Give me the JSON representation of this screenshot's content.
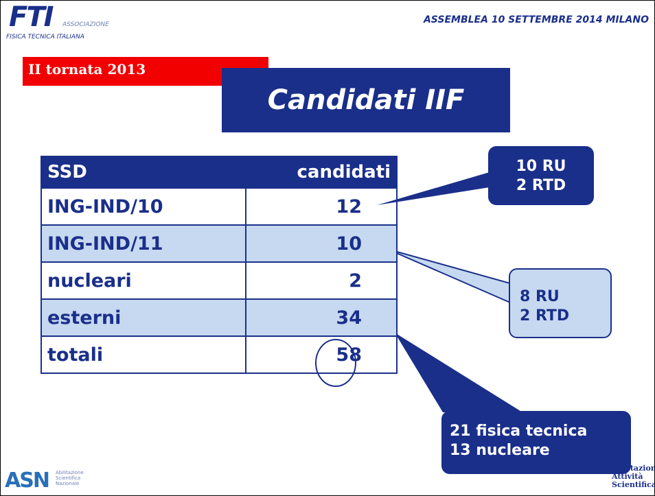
{
  "header": {
    "logo": {
      "mark": "FTI",
      "line1": "ASSOCIAZIONE",
      "line2": "FISICA TECNICA ITALIANA"
    },
    "event": "ASSEMBLEA  10 SETTEMBRE  2014 MILANO"
  },
  "tag": "II tornata 2013",
  "title": "Candidati  IIF",
  "table": {
    "columns": [
      "SSD",
      "candidati"
    ],
    "rows": [
      [
        "ING-IND/10",
        "12"
      ],
      [
        "ING-IND/11",
        "10"
      ],
      [
        "nucleari",
        "2"
      ],
      [
        "esterni",
        "34"
      ],
      [
        "totali",
        "58"
      ]
    ]
  },
  "callouts": [
    [
      "10 RU",
      "2 RTD"
    ],
    [
      "8 RU",
      "2 RTD"
    ],
    [
      "21 fisica tecnica",
      "13 nucleare"
    ]
  ],
  "footer": {
    "left": {
      "mark": "ASN",
      "lines": [
        "Abilitazione",
        "Scientifica",
        "Nazionale"
      ]
    },
    "right": {
      "lines": [
        "Valutazione",
        "Attività",
        "Scientifica"
      ]
    }
  }
}
